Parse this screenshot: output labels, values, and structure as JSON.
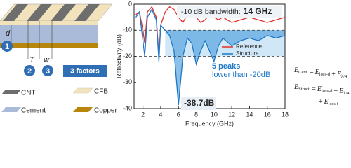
{
  "diagram": {
    "dimension_labels": [
      "d",
      "T",
      "w"
    ],
    "factor_numbers": [
      "1",
      "2",
      "3"
    ],
    "factors_label": "3 factors",
    "legend": [
      "CNT",
      "CFB",
      "Cement",
      "Copper"
    ]
  },
  "chart_data": {
    "type": "line",
    "x_label": "Frequency (GHz)",
    "y_label": "Reflectivity (dB)",
    "x": [
      1.2,
      1.6,
      2.0,
      2.2,
      2.5,
      3.0,
      3.5,
      3.8,
      4.0,
      4.5,
      5.0,
      5.5,
      6.0,
      6.5,
      7.0,
      7.5,
      8.0,
      8.5,
      9.0,
      9.5,
      10.0,
      10.5,
      11,
      12,
      13,
      14,
      15,
      16,
      17,
      18
    ],
    "series": [
      {
        "name": "Reference",
        "color": "#e0302c",
        "values": [
          -4,
          -3,
          -10,
          -15,
          -3,
          -1,
          -5,
          -20,
          -8,
          -3,
          -1,
          -2,
          -5,
          -7,
          -4,
          -3,
          -5,
          -7,
          -6,
          -4,
          -5,
          -6,
          -5,
          -7,
          -6,
          -5,
          -6,
          -7,
          -6,
          -5
        ]
      },
      {
        "name": "Structure",
        "color": "#1f78c8",
        "values": [
          -5,
          -3,
          -14,
          -20,
          -5,
          -2,
          -6,
          -22,
          -8,
          -10,
          -12,
          -18,
          -38.7,
          -20,
          -13,
          -15,
          -23,
          -18,
          -14,
          -18,
          -22,
          -16,
          -13,
          -16,
          -14,
          -13,
          -14,
          -12,
          -13,
          -12
        ]
      }
    ],
    "xlim": [
      1,
      18
    ],
    "xticks": [
      2,
      4,
      6,
      8,
      10,
      12,
      14,
      16,
      18
    ],
    "ylim": [
      -40,
      0
    ],
    "yticks": [
      0,
      -10,
      -20,
      -30,
      -40
    ],
    "threshold_lines": [
      -10,
      -20
    ],
    "bandwidth_label": "-10 dB bandwidth:",
    "bandwidth_value": "14 GHz",
    "peaks_label": "5 peaks",
    "peaks_note": "lower than -20dB",
    "min_label": "-38.7dB"
  },
  "equations": [
    [
      {
        "text": "E",
        "sub": "Cem."
      },
      {
        "text": "="
      },
      {
        "text": "E",
        "sub": "loss-d"
      },
      {
        "text": "+"
      },
      {
        "text": "E",
        "sub": "λ/4"
      }
    ],
    [
      {
        "text": "E",
        "sub": "Struct."
      },
      {
        "text": "="
      },
      {
        "text": "E",
        "sub": "loss-d"
      },
      {
        "text": "+"
      },
      {
        "text": "E",
        "sub": "λ/4"
      }
    ],
    [
      {
        "text": "+"
      },
      {
        "text": "E",
        "sub": "loss-t"
      }
    ]
  ]
}
